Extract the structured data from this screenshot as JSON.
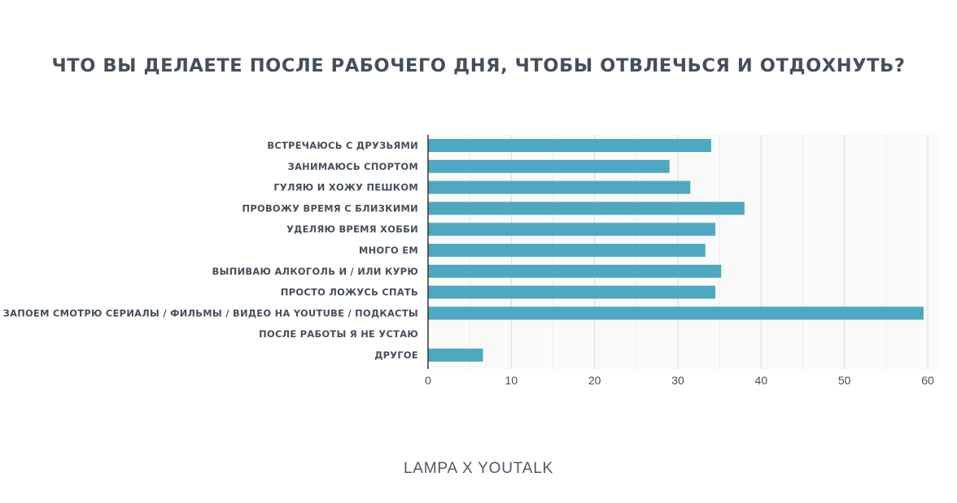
{
  "title": "ЧТО ВЫ ДЕЛАЕТЕ ПОСЛЕ РАБОЧЕГО ДНЯ, ЧТОБЫ ОТВЛЕЧЬСЯ И ОТДОХНУТЬ?",
  "footer": "LAMPA X YOUTALK",
  "colors": {
    "bar": "#4ea8c1",
    "text": "#454f5b",
    "grid": "#dcdcdc",
    "axis": "#333333"
  },
  "chart_data": {
    "type": "bar",
    "orientation": "horizontal",
    "categories": [
      "ВСТРЕЧАЮСЬ С ДРУЗЬЯМИ",
      "ЗАНИМАЮСЬ СПОРТОМ",
      "ГУЛЯЮ И ХОЖУ ПЕШКОМ",
      "ПРОВОЖУ ВРЕМЯ С БЛИЗКИМИ",
      "УДЕЛЯЮ ВРЕМЯ ХОББИ",
      "МНОГО ЕМ",
      "ВЫПИВАЮ АЛКОГОЛЬ И / ИЛИ КУРЮ",
      "ПРОСТО ЛОЖУСЬ СПАТЬ",
      "ЗАПОЕМ СМОТРЮ СЕРИАЛЫ / ФИЛЬМЫ / ВИДЕО НА YOUTUBE / ПОДКАСТЫ",
      "ПОСЛЕ РАБОТЫ Я НЕ УСТАЮ",
      "ДРУГОЕ"
    ],
    "values": [
      34,
      29,
      31.5,
      38,
      34.5,
      33.3,
      35.2,
      34.5,
      59.5,
      0,
      6.6
    ],
    "xlim": [
      0,
      60
    ],
    "xticks": [
      0,
      10,
      20,
      30,
      40,
      50,
      60
    ],
    "grid": true
  }
}
